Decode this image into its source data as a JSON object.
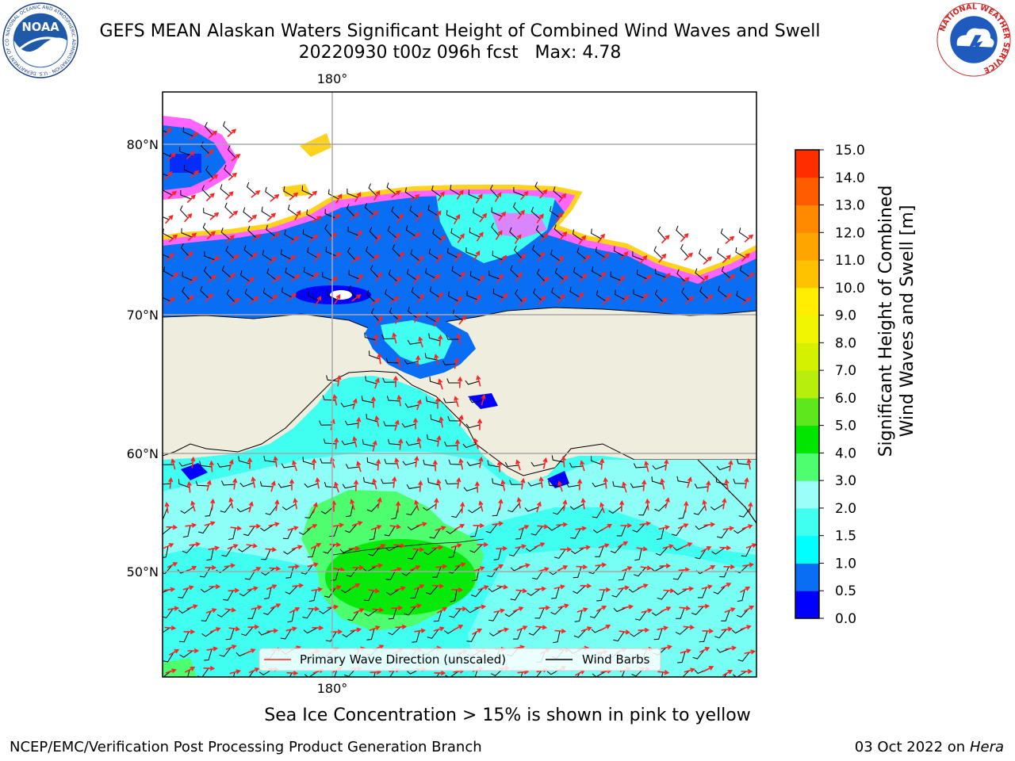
{
  "header": {
    "title_line1": "GEFS MEAN Alaskan Waters Significant Height of Combined Wind Waves and Swell",
    "title_line2": "20220930 t00z 096h fcst   Max: 4.78"
  },
  "logos": {
    "left": "NOAA",
    "left_ring_text": "NATIONAL OCEANIC AND ATMOSPHERIC ADMINISTRATION · U.S. DEPARTMENT OF COMMERCE",
    "right_ring_text": "NATIONAL WEATHER SERVICE"
  },
  "map": {
    "lon_label_top": "180°",
    "lon_label_bottom": "180°",
    "lat_labels": [
      "80°N",
      "70°N",
      "60°N",
      "50°N"
    ],
    "legend": {
      "wave_label": "Primary Wave Direction (unscaled)",
      "wind_label": "Wind Barbs",
      "wave_color": "#ff2020",
      "wind_color": "#000000"
    },
    "colors": {
      "land": "#efedde",
      "ice_pink": "#ff66ff",
      "ice_yellow": "#ffd21e"
    }
  },
  "colorbar": {
    "label": "Significant Height of Combined\nWind Waves and Swell [m]",
    "ticks": [
      "0.0",
      "0.5",
      "1.0",
      "1.5",
      "2.0",
      "3.0",
      "4.0",
      "5.0",
      "6.0",
      "7.0",
      "8.0",
      "9.0",
      "10.0",
      "11.0",
      "12.0",
      "13.0",
      "14.0",
      "15.0"
    ],
    "colors": [
      "#0000ff",
      "#0a6ef5",
      "#00ffff",
      "#40fff0",
      "#9cfff7",
      "#4dff6e",
      "#00e600",
      "#5ce81c",
      "#b7ee0c",
      "#d4f200",
      "#f0f500",
      "#ffee00",
      "#ffc200",
      "#ffa500",
      "#ff8a00",
      "#ff5c00",
      "#ff2e00"
    ]
  },
  "chart_data": {
    "type": "heatmap",
    "title": "GEFS MEAN Alaskan Waters Significant Height of Combined Wind Waves and Swell",
    "subtitle": "20220930 t00z 096h fcst   Max: 4.78",
    "max": 4.78,
    "units": "m",
    "colorbar_range": [
      0,
      15
    ]
  },
  "caption": "Sea Ice Concentration > 15% is shown in pink to yellow",
  "footer": {
    "left": "NCEP/EMC/Verification Post Processing Product Generation Branch",
    "right_date": "03 Oct 2022 on ",
    "right_host": "Hera"
  }
}
